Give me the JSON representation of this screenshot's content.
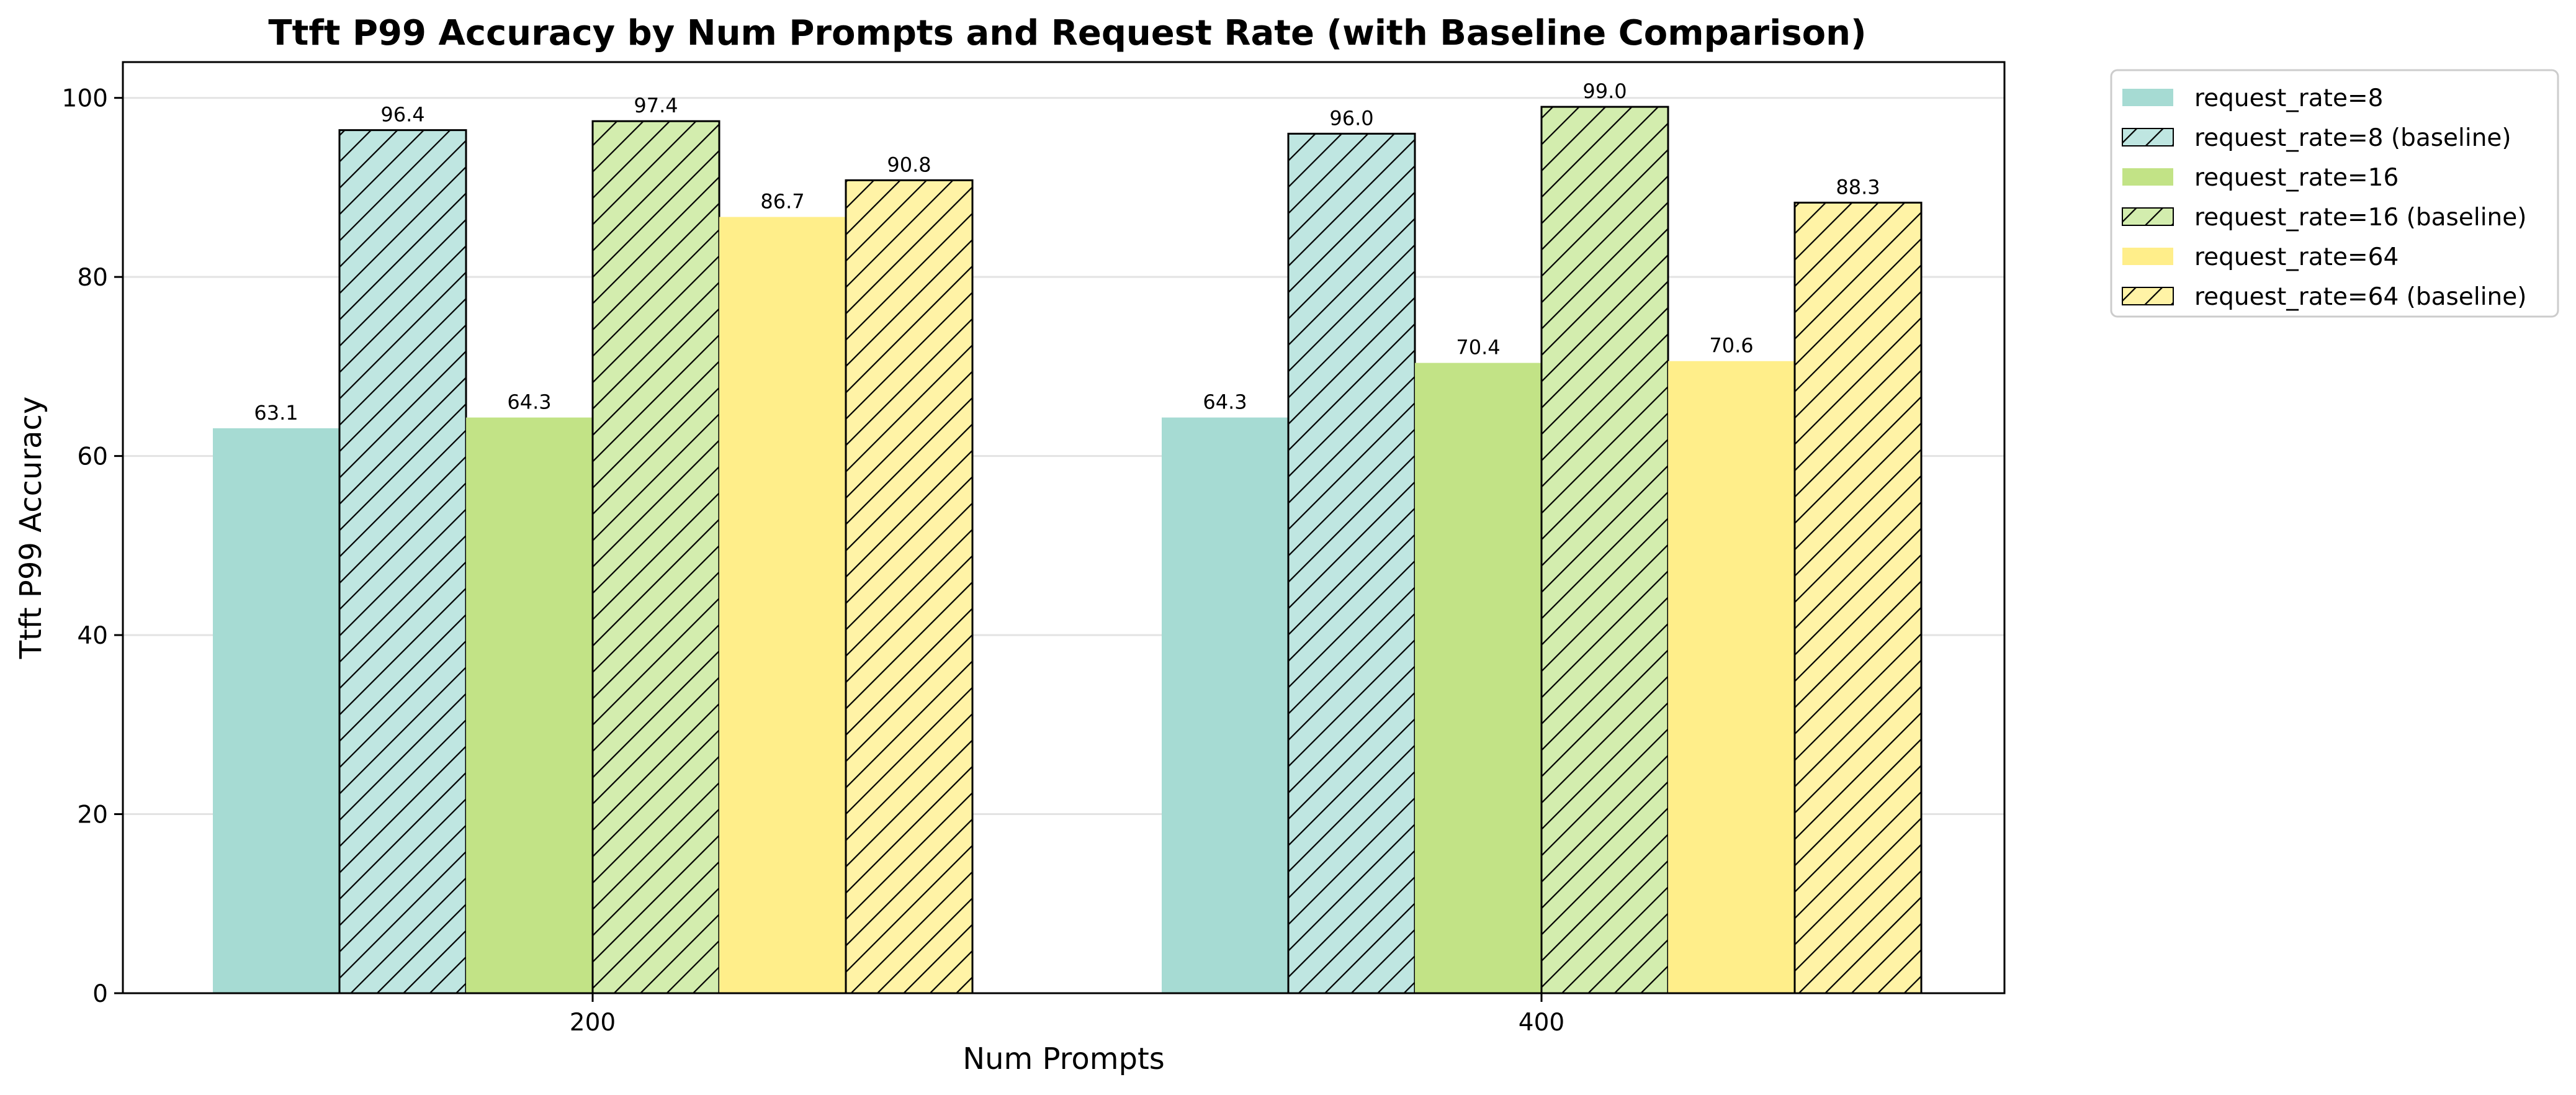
{
  "chart_data": {
    "type": "bar",
    "title": "Ttft P99 Accuracy by Num Prompts and Request Rate (with Baseline Comparison)",
    "xlabel": "Num Prompts",
    "ylabel": "Ttft P99 Accuracy",
    "categories": [
      "200",
      "400"
    ],
    "ylim": [
      0,
      104
    ],
    "yticks": [
      0,
      20,
      40,
      60,
      80,
      100
    ],
    "grid": "y",
    "legend_position": "outside-top-right",
    "series": [
      {
        "name": "request_rate=8",
        "values": [
          63.1,
          64.3
        ],
        "color": "#a6dbd3",
        "hatched": false
      },
      {
        "name": "request_rate=8 (baseline)",
        "values": [
          96.4,
          96.0
        ],
        "color": "#bfe6e1",
        "hatched": true
      },
      {
        "name": "request_rate=16",
        "values": [
          64.3,
          70.4
        ],
        "color": "#c2e386",
        "hatched": false
      },
      {
        "name": "request_rate=16 (baseline)",
        "values": [
          97.4,
          99.0
        ],
        "color": "#d3edae",
        "hatched": true
      },
      {
        "name": "request_rate=64",
        "values": [
          86.7,
          70.6
        ],
        "color": "#ffee8a",
        "hatched": false
      },
      {
        "name": "request_rate=64 (baseline)",
        "values": [
          90.8,
          88.3
        ],
        "color": "#fff3a6",
        "hatched": true
      }
    ]
  }
}
